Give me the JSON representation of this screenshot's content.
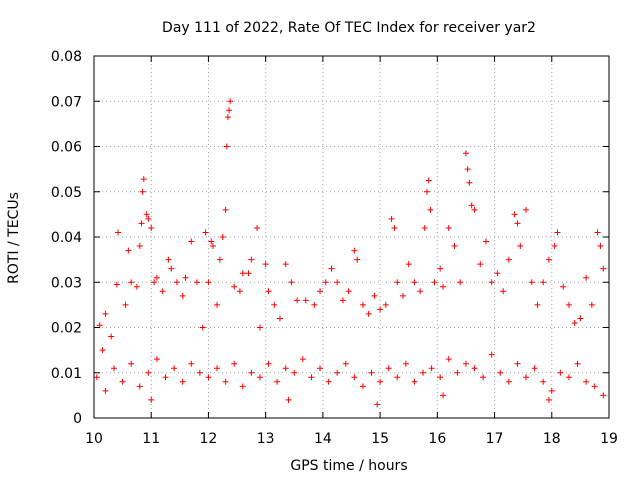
{
  "chart_data": {
    "type": "scatter",
    "title": "Day 111 of 2022, Rate Of TEC Index for receiver yar2",
    "xlabel": "GPS time / hours",
    "ylabel": "ROTI / TECUs",
    "xlim": [
      10,
      19
    ],
    "ylim": [
      0,
      0.08
    ],
    "xticks": [
      "10",
      "11",
      "12",
      "13",
      "14",
      "15",
      "16",
      "17",
      "18",
      "19"
    ],
    "yticks": [
      "0",
      "0.01",
      "0.02",
      "0.03",
      "0.04",
      "0.05",
      "0.06",
      "0.07",
      "0.08"
    ],
    "grid": true,
    "marker": "+",
    "color": "#ff0000",
    "series": [
      {
        "name": "ROTI",
        "points": [
          [
            10.1,
            0.0205
          ],
          [
            10.15,
            0.015
          ],
          [
            10.2,
            0.023
          ],
          [
            10.3,
            0.018
          ],
          [
            10.4,
            0.0295
          ],
          [
            10.42,
            0.041
          ],
          [
            10.55,
            0.025
          ],
          [
            10.6,
            0.037
          ],
          [
            10.65,
            0.03
          ],
          [
            10.75,
            0.029
          ],
          [
            10.8,
            0.038
          ],
          [
            10.83,
            0.043
          ],
          [
            10.85,
            0.05
          ],
          [
            10.87,
            0.0528
          ],
          [
            10.92,
            0.045
          ],
          [
            10.95,
            0.044
          ],
          [
            11.0,
            0.042
          ],
          [
            11.05,
            0.03
          ],
          [
            11.1,
            0.031
          ],
          [
            11.2,
            0.028
          ],
          [
            11.3,
            0.035
          ],
          [
            11.35,
            0.033
          ],
          [
            11.45,
            0.03
          ],
          [
            11.55,
            0.027
          ],
          [
            11.6,
            0.031
          ],
          [
            11.7,
            0.039
          ],
          [
            11.8,
            0.03
          ],
          [
            11.9,
            0.02
          ],
          [
            11.95,
            0.041
          ],
          [
            12.0,
            0.03
          ],
          [
            12.05,
            0.039
          ],
          [
            12.08,
            0.038
          ],
          [
            12.15,
            0.025
          ],
          [
            12.2,
            0.035
          ],
          [
            12.25,
            0.04
          ],
          [
            12.3,
            0.046
          ],
          [
            12.32,
            0.06
          ],
          [
            12.34,
            0.0665
          ],
          [
            12.36,
            0.068
          ],
          [
            12.38,
            0.07
          ],
          [
            12.45,
            0.029
          ],
          [
            12.55,
            0.028
          ],
          [
            12.6,
            0.032
          ],
          [
            12.7,
            0.032
          ],
          [
            12.75,
            0.035
          ],
          [
            12.85,
            0.042
          ],
          [
            12.9,
            0.02
          ],
          [
            13.0,
            0.034
          ],
          [
            13.05,
            0.028
          ],
          [
            13.15,
            0.025
          ],
          [
            13.25,
            0.022
          ],
          [
            13.35,
            0.034
          ],
          [
            13.45,
            0.03
          ],
          [
            13.55,
            0.026
          ],
          [
            13.7,
            0.026
          ],
          [
            13.85,
            0.025
          ],
          [
            13.95,
            0.028
          ],
          [
            14.05,
            0.03
          ],
          [
            14.15,
            0.033
          ],
          [
            14.25,
            0.03
          ],
          [
            14.35,
            0.026
          ],
          [
            14.45,
            0.028
          ],
          [
            14.55,
            0.037
          ],
          [
            14.6,
            0.035
          ],
          [
            14.7,
            0.025
          ],
          [
            14.8,
            0.023
          ],
          [
            14.9,
            0.027
          ],
          [
            15.0,
            0.024
          ],
          [
            15.1,
            0.025
          ],
          [
            15.2,
            0.044
          ],
          [
            15.25,
            0.042
          ],
          [
            15.3,
            0.03
          ],
          [
            15.4,
            0.027
          ],
          [
            15.5,
            0.034
          ],
          [
            15.6,
            0.03
          ],
          [
            15.7,
            0.028
          ],
          [
            15.78,
            0.042
          ],
          [
            15.82,
            0.05
          ],
          [
            15.85,
            0.0525
          ],
          [
            15.88,
            0.046
          ],
          [
            15.95,
            0.03
          ],
          [
            16.05,
            0.033
          ],
          [
            16.1,
            0.029
          ],
          [
            16.2,
            0.042
          ],
          [
            16.3,
            0.038
          ],
          [
            16.4,
            0.03
          ],
          [
            16.5,
            0.0585
          ],
          [
            16.53,
            0.055
          ],
          [
            16.56,
            0.052
          ],
          [
            16.6,
            0.047
          ],
          [
            16.65,
            0.046
          ],
          [
            16.75,
            0.034
          ],
          [
            16.85,
            0.039
          ],
          [
            16.95,
            0.03
          ],
          [
            17.05,
            0.032
          ],
          [
            17.15,
            0.028
          ],
          [
            17.25,
            0.035
          ],
          [
            17.35,
            0.045
          ],
          [
            17.4,
            0.043
          ],
          [
            17.45,
            0.038
          ],
          [
            17.55,
            0.046
          ],
          [
            17.65,
            0.03
          ],
          [
            17.75,
            0.025
          ],
          [
            17.85,
            0.03
          ],
          [
            17.95,
            0.035
          ],
          [
            18.05,
            0.038
          ],
          [
            18.1,
            0.041
          ],
          [
            18.2,
            0.029
          ],
          [
            18.3,
            0.025
          ],
          [
            18.4,
            0.021
          ],
          [
            18.5,
            0.022
          ],
          [
            18.6,
            0.031
          ],
          [
            18.7,
            0.025
          ],
          [
            18.8,
            0.041
          ],
          [
            18.85,
            0.038
          ],
          [
            18.9,
            0.033
          ],
          [
            10.05,
            0.009
          ],
          [
            10.2,
            0.006
          ],
          [
            10.35,
            0.011
          ],
          [
            10.5,
            0.008
          ],
          [
            10.65,
            0.012
          ],
          [
            10.8,
            0.007
          ],
          [
            10.95,
            0.01
          ],
          [
            11.1,
            0.013
          ],
          [
            11.25,
            0.009
          ],
          [
            11.4,
            0.011
          ],
          [
            11.55,
            0.008
          ],
          [
            11.7,
            0.012
          ],
          [
            11.85,
            0.01
          ],
          [
            12.0,
            0.009
          ],
          [
            12.15,
            0.011
          ],
          [
            12.3,
            0.008
          ],
          [
            12.45,
            0.012
          ],
          [
            12.6,
            0.007
          ],
          [
            12.75,
            0.01
          ],
          [
            12.9,
            0.009
          ],
          [
            13.05,
            0.012
          ],
          [
            13.2,
            0.008
          ],
          [
            13.35,
            0.011
          ],
          [
            13.5,
            0.01
          ],
          [
            13.65,
            0.013
          ],
          [
            13.8,
            0.009
          ],
          [
            13.95,
            0.011
          ],
          [
            14.1,
            0.008
          ],
          [
            14.25,
            0.01
          ],
          [
            14.4,
            0.012
          ],
          [
            14.55,
            0.009
          ],
          [
            14.7,
            0.007
          ],
          [
            14.85,
            0.01
          ],
          [
            15.0,
            0.008
          ],
          [
            15.15,
            0.011
          ],
          [
            15.3,
            0.009
          ],
          [
            15.45,
            0.012
          ],
          [
            15.6,
            0.008
          ],
          [
            15.75,
            0.01
          ],
          [
            15.9,
            0.011
          ],
          [
            16.05,
            0.009
          ],
          [
            16.2,
            0.013
          ],
          [
            16.35,
            0.01
          ],
          [
            16.5,
            0.012
          ],
          [
            16.65,
            0.011
          ],
          [
            16.8,
            0.009
          ],
          [
            16.95,
            0.014
          ],
          [
            17.1,
            0.01
          ],
          [
            17.25,
            0.008
          ],
          [
            17.4,
            0.012
          ],
          [
            17.55,
            0.009
          ],
          [
            17.7,
            0.011
          ],
          [
            17.85,
            0.008
          ],
          [
            18.0,
            0.006
          ],
          [
            18.15,
            0.01
          ],
          [
            18.3,
            0.009
          ],
          [
            18.45,
            0.012
          ],
          [
            18.6,
            0.008
          ],
          [
            18.75,
            0.007
          ],
          [
            18.9,
            0.005
          ],
          [
            14.95,
            0.003
          ],
          [
            17.95,
            0.004
          ],
          [
            11.0,
            0.004
          ],
          [
            16.1,
            0.005
          ],
          [
            13.4,
            0.004
          ]
        ]
      }
    ]
  }
}
